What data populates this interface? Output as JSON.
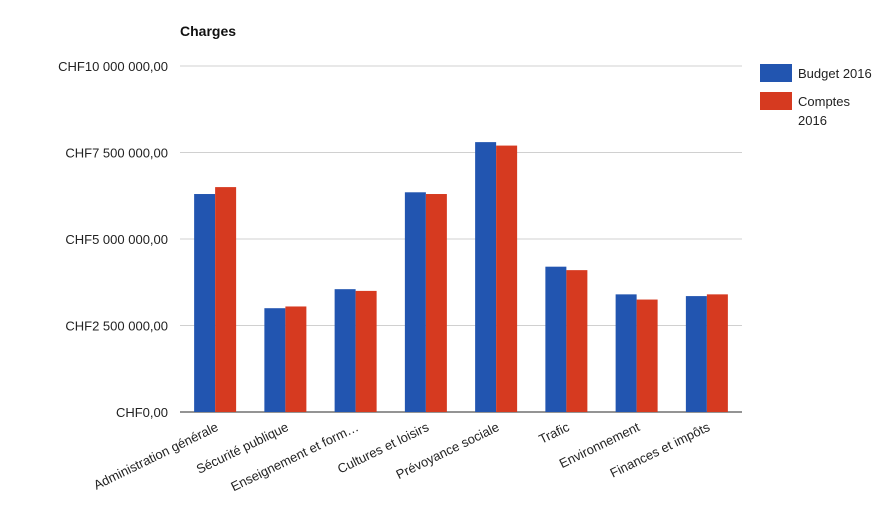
{
  "chart_data": {
    "type": "bar",
    "title": "Charges",
    "categories": [
      "Administration générale",
      "Sécurité publique",
      "Enseignement et form…",
      "Cultures et loisirs",
      "Prévoyance sociale",
      "Trafic",
      "Environnement",
      "Finances et impôts"
    ],
    "series": [
      {
        "name": "Budget 2016",
        "color": "#2255b0",
        "values": [
          6300000,
          3000000,
          3550000,
          6350000,
          7800000,
          4200000,
          3400000,
          3350000
        ]
      },
      {
        "name": "Comptes 2016",
        "color": "#d63a20",
        "values": [
          6500000,
          3050000,
          3500000,
          6300000,
          7700000,
          4100000,
          3250000,
          3400000
        ]
      }
    ],
    "y_ticks": [
      "CHF0,00",
      "CHF2 500 000,00",
      "CHF5 000 000,00",
      "CHF7 500 000,00",
      "CHF10 000 000,00"
    ],
    "y_tick_values": [
      0,
      2500000,
      5000000,
      7500000,
      10000000
    ],
    "ylim": [
      0,
      10000000
    ],
    "grid": true,
    "legend_position": "right",
    "legend": [
      {
        "lines": [
          "Budget 2016"
        ]
      },
      {
        "lines": [
          "Comptes",
          "2016"
        ]
      }
    ]
  }
}
